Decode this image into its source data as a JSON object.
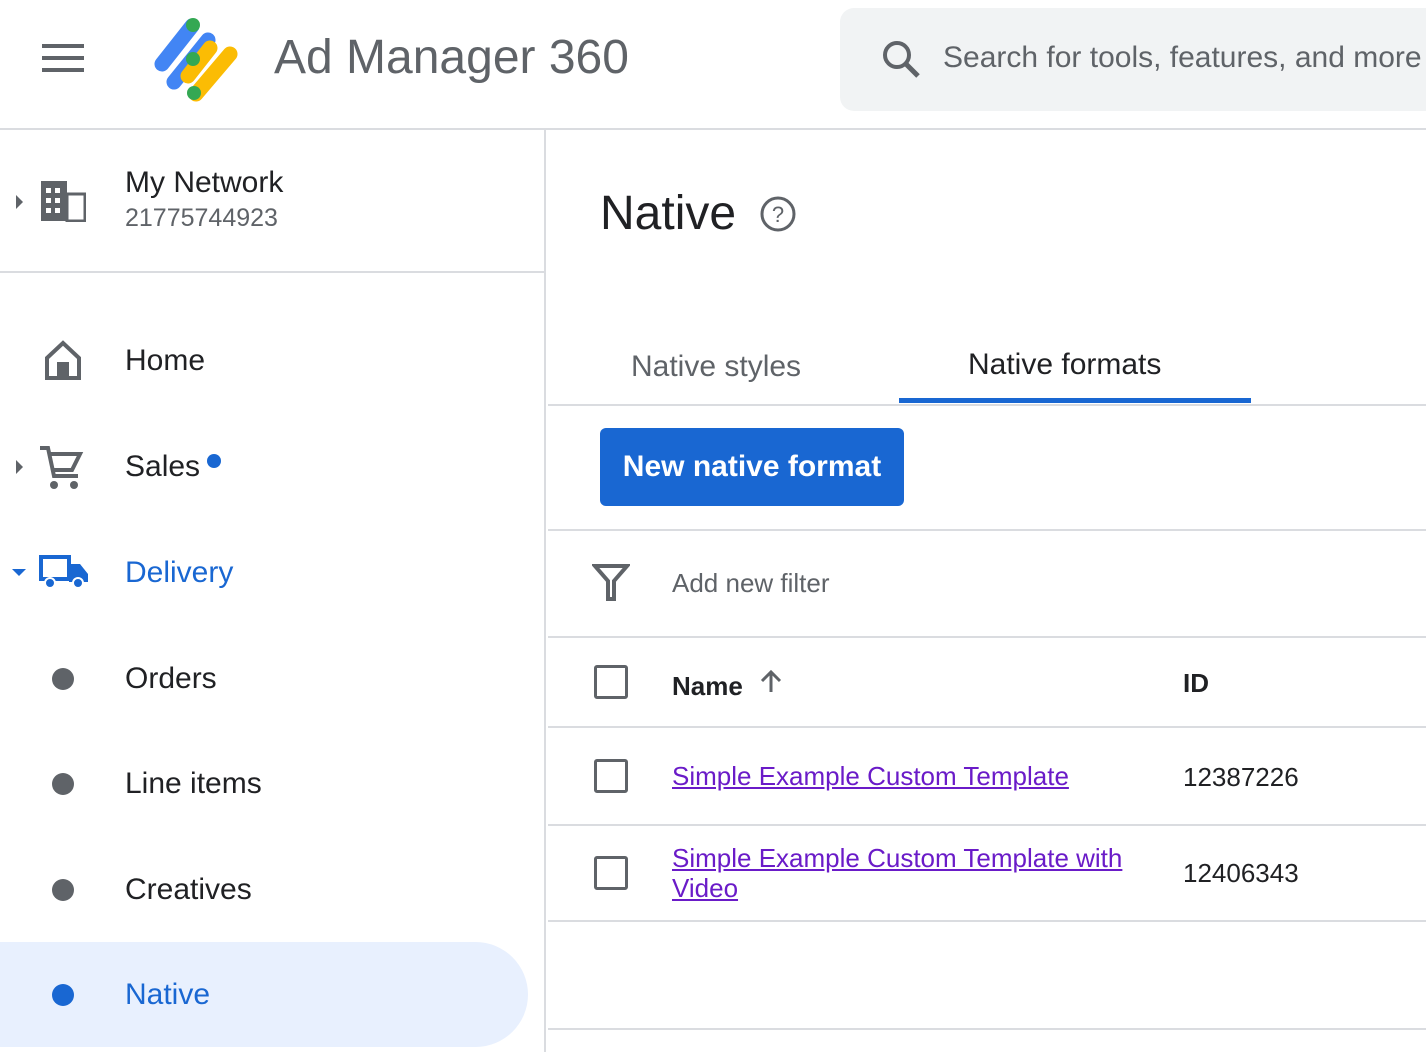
{
  "header": {
    "app_title": "Ad Manager 360",
    "search_placeholder": "Search for tools, features, and more"
  },
  "network": {
    "name": "My Network",
    "id": "21775744923"
  },
  "sidebar": {
    "items": [
      {
        "label": "Home",
        "icon": "home-icon"
      },
      {
        "label": "Sales",
        "icon": "cart-icon",
        "badge": true
      },
      {
        "label": "Delivery",
        "icon": "truck-icon",
        "expanded": true
      },
      {
        "label": "Orders"
      },
      {
        "label": "Line items"
      },
      {
        "label": "Creatives"
      },
      {
        "label": "Native",
        "selected": true
      }
    ]
  },
  "page": {
    "title": "Native",
    "tabs": [
      {
        "label": "Native styles"
      },
      {
        "label": "Native formats",
        "active": true
      }
    ],
    "new_button": "New native format",
    "filter_placeholder": "Add new filter",
    "columns": {
      "name": "Name",
      "id": "ID"
    },
    "rows": [
      {
        "name": "Simple Example Custom Template",
        "id": "12387226"
      },
      {
        "name": "Simple Example Custom Template with Video",
        "id": "12406343"
      }
    ]
  },
  "colors": {
    "accent": "#1967d2",
    "selected_bg": "#e8f0fe",
    "link": "#6a1bc8"
  }
}
